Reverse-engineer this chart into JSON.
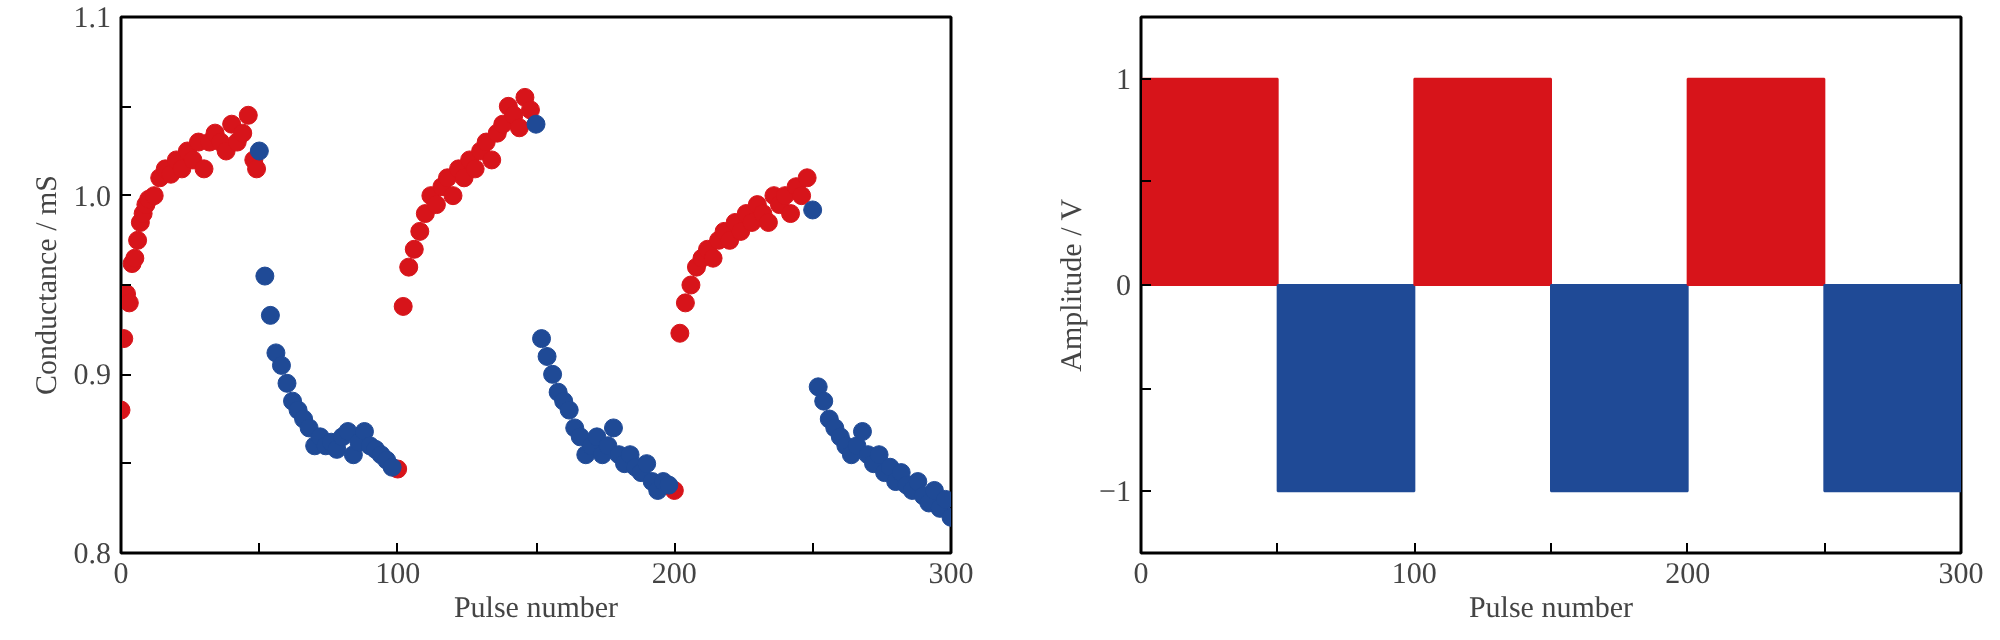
{
  "chart_data": [
    {
      "type": "scatter",
      "xlabel": "Pulse number",
      "ylabel": "Conductance / mS",
      "marker": "circle",
      "grid": false,
      "xlim": [
        0,
        300
      ],
      "xticks": [
        0,
        {
          "value": 50,
          "label": null
        },
        100,
        {
          "value": 150,
          "label": null
        },
        200,
        {
          "value": 250,
          "label": null
        },
        300
      ],
      "ylim": [
        0.8,
        1.1
      ],
      "yticks": [
        0.8,
        {
          "value": 0.85,
          "label": null
        },
        0.9,
        {
          "value": 0.95,
          "label": null
        },
        {
          "value": 1,
          "label": "1.0"
        },
        {
          "value": 1.05,
          "label": null
        },
        1.1
      ],
      "series": [
        {
          "color": "#d7141a",
          "x": [
            0,
            1,
            2,
            3,
            4,
            5,
            6,
            7,
            8,
            9,
            10,
            12,
            14,
            16,
            18,
            20,
            22,
            24,
            26,
            28,
            30,
            32,
            34,
            36,
            38,
            40,
            42,
            44,
            46,
            48,
            49,
            100,
            102,
            104,
            106,
            108,
            110,
            112,
            114,
            116,
            118,
            120,
            122,
            124,
            126,
            128,
            130,
            132,
            134,
            136,
            138,
            140,
            142,
            144,
            146,
            148,
            200,
            202,
            204,
            206,
            208,
            210,
            212,
            214,
            216,
            218,
            220,
            222,
            224,
            226,
            228,
            230,
            232,
            234,
            236,
            238,
            240,
            242,
            244,
            246,
            248
          ],
          "values": [
            0.88,
            0.92,
            0.945,
            0.94,
            0.962,
            0.965,
            0.975,
            0.985,
            0.99,
            0.995,
            0.998,
            1.0,
            1.01,
            1.015,
            1.012,
            1.02,
            1.015,
            1.025,
            1.02,
            1.03,
            1.015,
            1.03,
            1.035,
            1.03,
            1.025,
            1.04,
            1.03,
            1.035,
            1.045,
            1.02,
            1.015,
            0.847,
            0.938,
            0.96,
            0.97,
            0.98,
            0.99,
            1.0,
            0.995,
            1.005,
            1.01,
            1.0,
            1.015,
            1.01,
            1.02,
            1.015,
            1.025,
            1.03,
            1.02,
            1.035,
            1.04,
            1.05,
            1.045,
            1.038,
            1.055,
            1.048,
            0.835,
            0.923,
            0.94,
            0.95,
            0.96,
            0.965,
            0.97,
            0.965,
            0.975,
            0.98,
            0.975,
            0.985,
            0.98,
            0.99,
            0.985,
            0.995,
            0.99,
            0.985,
            1.0,
            0.995,
            1.0,
            0.99,
            1.005,
            1.0,
            1.01
          ]
        },
        {
          "color": "#1f4a96",
          "x": [
            50,
            52,
            54,
            56,
            58,
            60,
            62,
            64,
            66,
            68,
            70,
            72,
            74,
            76,
            78,
            80,
            82,
            84,
            86,
            88,
            90,
            92,
            94,
            96,
            98,
            150,
            152,
            154,
            156,
            158,
            160,
            162,
            164,
            166,
            168,
            170,
            172,
            174,
            176,
            178,
            180,
            182,
            184,
            186,
            188,
            190,
            192,
            194,
            196,
            198,
            250,
            252,
            254,
            256,
            258,
            260,
            262,
            264,
            266,
            268,
            270,
            272,
            274,
            276,
            278,
            280,
            282,
            284,
            286,
            288,
            290,
            292,
            294,
            296,
            298,
            300
          ],
          "values": [
            1.025,
            0.955,
            0.933,
            0.912,
            0.905,
            0.895,
            0.885,
            0.88,
            0.875,
            0.87,
            0.86,
            0.865,
            0.86,
            0.862,
            0.858,
            0.865,
            0.868,
            0.855,
            0.862,
            0.868,
            0.86,
            0.858,
            0.855,
            0.852,
            0.848,
            1.04,
            0.92,
            0.91,
            0.9,
            0.89,
            0.885,
            0.88,
            0.87,
            0.865,
            0.855,
            0.86,
            0.865,
            0.855,
            0.86,
            0.87,
            0.855,
            0.85,
            0.855,
            0.848,
            0.845,
            0.85,
            0.84,
            0.835,
            0.84,
            0.838,
            0.992,
            0.893,
            0.885,
            0.875,
            0.87,
            0.865,
            0.86,
            0.855,
            0.86,
            0.868,
            0.855,
            0.85,
            0.855,
            0.845,
            0.848,
            0.84,
            0.845,
            0.838,
            0.835,
            0.84,
            0.832,
            0.828,
            0.835,
            0.825,
            0.83,
            0.82
          ]
        }
      ]
    },
    {
      "type": "bar",
      "xlabel": "Pulse number",
      "ylabel": "Amplitude / V",
      "grid": false,
      "xlim": [
        0,
        300
      ],
      "xticks": [
        0,
        {
          "value": 50,
          "label": null
        },
        100,
        {
          "value": 150,
          "label": null
        },
        200,
        {
          "value": 250,
          "label": null
        },
        300
      ],
      "ylim": [
        -1.3,
        1.3
      ],
      "yticks": [
        -1,
        {
          "value": -0.5,
          "label": null
        },
        0,
        {
          "value": 0.5,
          "label": null
        },
        1
      ],
      "x": [
        25,
        75,
        125,
        175,
        225,
        275
      ],
      "values": [
        1,
        -1,
        1,
        -1,
        1,
        -1
      ],
      "colors": [
        "#d7141a",
        "#1f4a96",
        "#d7141a",
        "#1f4a96",
        "#d7141a",
        "#1f4a96"
      ]
    }
  ]
}
